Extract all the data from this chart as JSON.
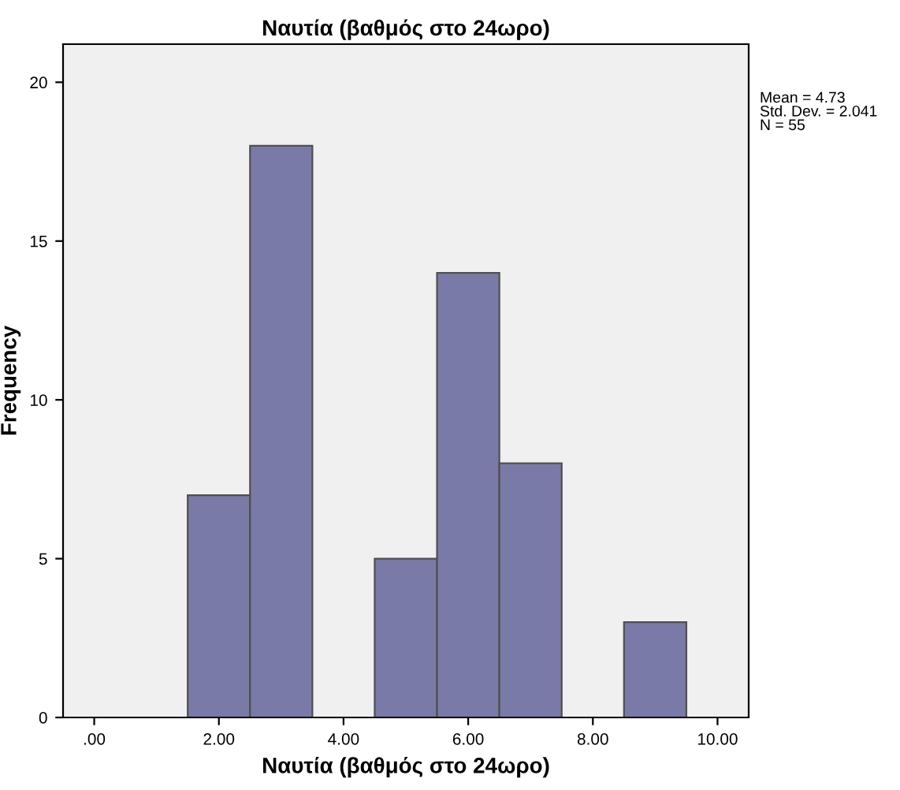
{
  "chart_data": {
    "type": "histogram",
    "title": "Ναυτία (βαθμός στο 24ωρο)",
    "xlabel": "Ναυτία (βαθμός στο 24ωρο)",
    "ylabel": "Frequency",
    "bins": [
      1.5,
      2.5,
      3.5,
      4.5,
      5.5,
      6.5,
      7.5,
      8.5,
      9.5
    ],
    "values": [
      7,
      18,
      0,
      5,
      14,
      8,
      0,
      3
    ],
    "color": "#7a7aa8",
    "xlim": [
      -0.5,
      10.5
    ],
    "xticks": [
      {
        "value": 0,
        "label": ".00"
      },
      {
        "value": 2,
        "label": "2.00"
      },
      {
        "value": 4,
        "label": "4.00"
      },
      {
        "value": 6,
        "label": "6.00"
      },
      {
        "value": 8,
        "label": "8.00"
      },
      {
        "value": 10,
        "label": "10.00"
      }
    ],
    "ylim": [
      0,
      21.2
    ],
    "yticks": [
      0,
      5,
      10,
      15,
      20
    ],
    "annotations": [
      "Mean = 4.73",
      "Std. Dev. = 2.041",
      "N = 55"
    ],
    "grid": false,
    "legend": false
  }
}
